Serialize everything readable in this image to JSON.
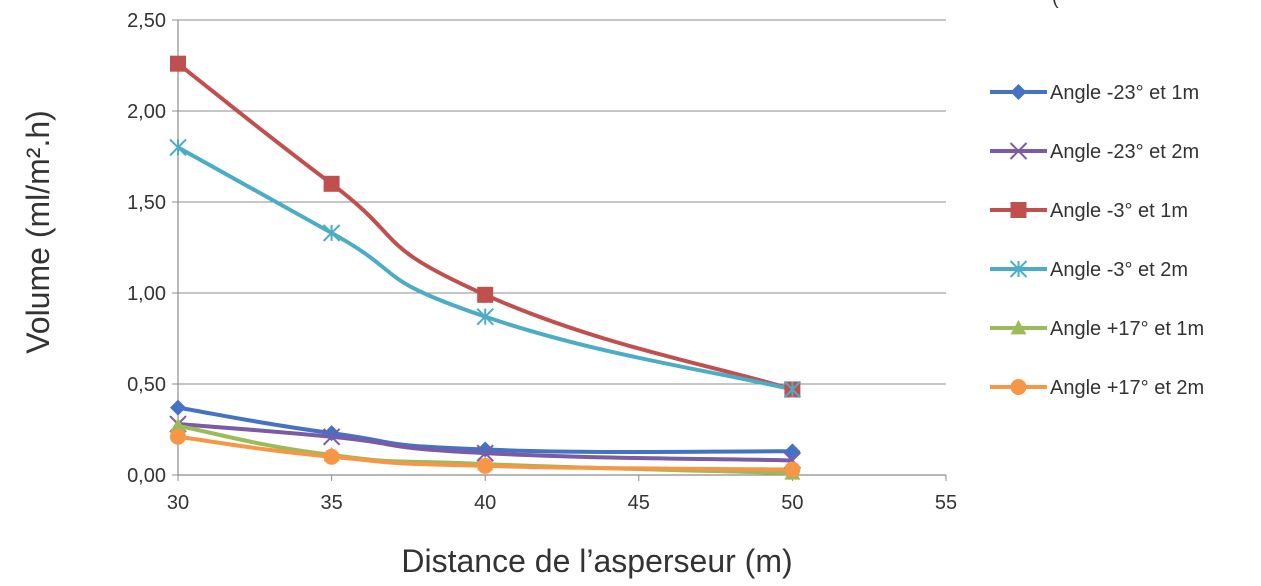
{
  "chart_data": {
    "type": "line",
    "title": "",
    "xlabel": "Distance de l’asperseur (m)",
    "ylabel": "Volume (ml/m².h)",
    "xlim": [
      30,
      55
    ],
    "ylim": [
      0,
      2.5
    ],
    "x_ticks": [
      "30",
      "35",
      "40",
      "45",
      "50",
      "55"
    ],
    "y_ticks": [
      "0,00",
      "0,50",
      "1,00",
      "1,50",
      "2,00",
      "2,50"
    ],
    "grid": "horizontal",
    "legend_position": "right",
    "smooth": true,
    "top_right_clipped_text": "(",
    "x": [
      30,
      35,
      40,
      50
    ],
    "series": [
      {
        "name": "Angle -23° et 1m",
        "values": [
          0.37,
          0.23,
          0.14,
          0.13
        ],
        "color": "#4472c4",
        "marker": "diamond"
      },
      {
        "name": "Angle -23° et 2m",
        "values": [
          0.28,
          0.21,
          0.12,
          0.08
        ],
        "color": "#7b5aa6",
        "marker": "x"
      },
      {
        "name": "Angle -3° et 1m",
        "values": [
          2.26,
          1.6,
          0.99,
          0.47
        ],
        "color": "#c0504d",
        "marker": "square"
      },
      {
        "name": "Angle -3° et 2m",
        "values": [
          1.8,
          1.33,
          0.87,
          0.47
        ],
        "color": "#4bacc6",
        "marker": "star"
      },
      {
        "name": "Angle +17° et 1m",
        "values": [
          0.27,
          0.11,
          0.06,
          0.01
        ],
        "color": "#9bbb59",
        "marker": "triangle"
      },
      {
        "name": "Angle +17° et 2m",
        "values": [
          0.21,
          0.1,
          0.05,
          0.03
        ],
        "color": "#f79646",
        "marker": "circle"
      }
    ]
  }
}
